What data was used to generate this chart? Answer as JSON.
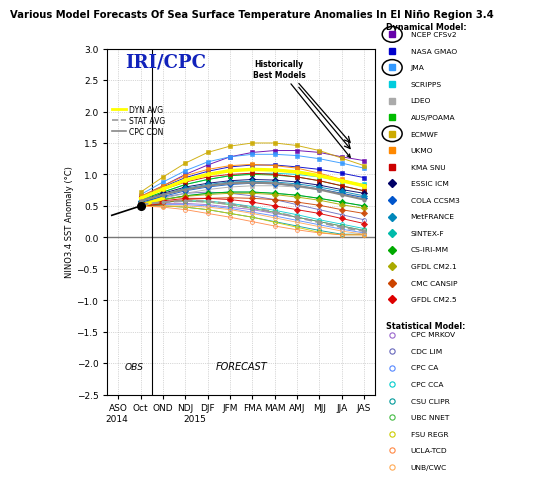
{
  "title": "Various Model Forecasts Of Sea Surface Temperature Anomalies In El Niño Region 3.4",
  "ylabel": "NINO3.4 SST Anomaly (°C)",
  "ylim": [
    -2.5,
    3.0
  ],
  "yticks": [
    3.0,
    2.5,
    2.0,
    1.5,
    1.0,
    0.5,
    0.0,
    -0.5,
    -1.0,
    -1.5,
    -2.0,
    -2.5
  ],
  "xtick_labels": [
    "ASO",
    "Oct",
    "OND",
    "NDJ",
    "DJF",
    "JFM",
    "FMA",
    "MAM",
    "AMJ",
    "MJJ",
    "JJA",
    "JAS"
  ],
  "background_color": "#ffffff",
  "obs_prior": 0.35,
  "obs_value": 0.5,
  "dynamical_models": {
    "NCEP CFSv2": {
      "color": "#6600aa",
      "marker": "s",
      "values": [
        0.5,
        0.65,
        0.82,
        1.0,
        1.15,
        1.28,
        1.35,
        1.38,
        1.38,
        1.35,
        1.28,
        1.22
      ]
    },
    "NASA GMAO": {
      "color": "#0000cc",
      "marker": "s",
      "values": [
        0.5,
        0.62,
        0.8,
        0.95,
        1.05,
        1.12,
        1.15,
        1.15,
        1.12,
        1.08,
        1.02,
        0.95
      ]
    },
    "JMA": {
      "color": "#3399ff",
      "marker": "s",
      "values": [
        0.5,
        0.68,
        0.88,
        1.06,
        1.2,
        1.28,
        1.32,
        1.32,
        1.3,
        1.25,
        1.18,
        1.1
      ],
      "circled": true
    },
    "SCRIPPS": {
      "color": "#00ccdd",
      "marker": "s",
      "values": [
        0.5,
        0.6,
        0.72,
        0.84,
        0.92,
        0.98,
        1.01,
        1.02,
        1.0,
        0.96,
        0.9,
        0.84
      ]
    },
    "LDEO": {
      "color": "#aaaaaa",
      "marker": "s",
      "values": [
        0.5,
        0.55,
        0.62,
        0.7,
        0.76,
        0.8,
        0.82,
        0.82,
        0.8,
        0.76,
        0.7,
        0.64
      ]
    },
    "AUS/POAMA": {
      "color": "#00bb00",
      "marker": "s",
      "values": [
        0.5,
        0.6,
        0.72,
        0.84,
        0.92,
        0.98,
        1.0,
        0.99,
        0.96,
        0.9,
        0.82,
        0.74
      ]
    },
    "ECMWF": {
      "color": "#ccaa00",
      "marker": "s",
      "values": [
        0.5,
        0.72,
        0.96,
        1.18,
        1.35,
        1.45,
        1.5,
        1.5,
        1.46,
        1.38,
        1.26,
        1.14
      ],
      "circled": true
    },
    "UKMO": {
      "color": "#ff8800",
      "marker": "s",
      "values": [
        0.5,
        0.65,
        0.82,
        0.98,
        1.08,
        1.14,
        1.16,
        1.14,
        1.1,
        1.02,
        0.92,
        0.82
      ]
    },
    "KMA SNU": {
      "color": "#cc0000",
      "marker": "s",
      "values": [
        0.5,
        0.62,
        0.76,
        0.88,
        0.96,
        1.0,
        1.02,
        1.0,
        0.96,
        0.9,
        0.82,
        0.74
      ]
    },
    "ESSIC ICM": {
      "color": "#000066",
      "marker": "D",
      "values": [
        0.5,
        0.58,
        0.7,
        0.8,
        0.86,
        0.9,
        0.92,
        0.91,
        0.88,
        0.83,
        0.76,
        0.7
      ]
    },
    "COLA CCSM3": {
      "color": "#0055cc",
      "marker": "D",
      "values": [
        0.5,
        0.56,
        0.65,
        0.74,
        0.8,
        0.84,
        0.86,
        0.85,
        0.82,
        0.77,
        0.7,
        0.63
      ]
    },
    "MetFRANCE": {
      "color": "#0088bb",
      "marker": "D",
      "values": [
        0.5,
        0.58,
        0.68,
        0.78,
        0.84,
        0.88,
        0.89,
        0.88,
        0.85,
        0.8,
        0.73,
        0.66
      ]
    },
    "SINTEX-F": {
      "color": "#00bbaa",
      "marker": "D",
      "values": [
        0.5,
        0.54,
        0.6,
        0.66,
        0.7,
        0.72,
        0.72,
        0.7,
        0.67,
        0.62,
        0.56,
        0.5
      ]
    },
    "CS-IRI-MM": {
      "color": "#00aa00",
      "marker": "D",
      "values": [
        0.5,
        0.54,
        0.6,
        0.66,
        0.7,
        0.72,
        0.72,
        0.7,
        0.67,
        0.62,
        0.56,
        0.5
      ]
    },
    "GFDL CM2.1": {
      "color": "#aaaa00",
      "marker": "D",
      "values": [
        0.5,
        0.54,
        0.6,
        0.65,
        0.68,
        0.7,
        0.7,
        0.68,
        0.64,
        0.59,
        0.52,
        0.46
      ]
    },
    "CMC CANSIP": {
      "color": "#cc4400",
      "marker": "D",
      "values": [
        0.5,
        0.52,
        0.56,
        0.6,
        0.62,
        0.63,
        0.62,
        0.6,
        0.56,
        0.51,
        0.44,
        0.38
      ]
    },
    "GFDL CM2.5": {
      "color": "#dd0000",
      "marker": "D",
      "values": [
        0.5,
        0.54,
        0.58,
        0.62,
        0.62,
        0.6,
        0.56,
        0.5,
        0.44,
        0.38,
        0.3,
        0.22
      ]
    }
  },
  "statistical_models": {
    "CPC MRKOV": {
      "color": "#9966cc",
      "values": [
        0.5,
        0.52,
        0.54,
        0.54,
        0.52,
        0.48,
        0.44,
        0.38,
        0.32,
        0.25,
        0.18,
        0.11
      ]
    },
    "CDC LIM": {
      "color": "#6666bb",
      "values": [
        0.5,
        0.56,
        0.64,
        0.7,
        0.72,
        0.7,
        0.66,
        0.6,
        0.52,
        0.44,
        0.36,
        0.28
      ]
    },
    "CPC CA": {
      "color": "#5588ff",
      "values": [
        0.5,
        0.5,
        0.52,
        0.52,
        0.5,
        0.46,
        0.4,
        0.34,
        0.27,
        0.2,
        0.13,
        0.07
      ]
    },
    "CPC CCA": {
      "color": "#00cccc",
      "values": [
        0.5,
        0.52,
        0.56,
        0.58,
        0.58,
        0.54,
        0.49,
        0.43,
        0.36,
        0.28,
        0.21,
        0.14
      ]
    },
    "CSU CLIPR": {
      "color": "#009999",
      "values": [
        0.5,
        0.5,
        0.5,
        0.48,
        0.44,
        0.38,
        0.32,
        0.25,
        0.18,
        0.11,
        0.05,
        0.05
      ]
    },
    "UBC NNET": {
      "color": "#44bb44",
      "values": [
        0.5,
        0.52,
        0.56,
        0.58,
        0.56,
        0.52,
        0.46,
        0.4,
        0.32,
        0.25,
        0.18,
        0.11
      ]
    },
    "FSU REGR": {
      "color": "#cccc00",
      "values": [
        0.5,
        0.5,
        0.5,
        0.48,
        0.44,
        0.38,
        0.32,
        0.24,
        0.16,
        0.08,
        0.04,
        0.04
      ]
    },
    "UCLA-TCD": {
      "color": "#ff8844",
      "values": [
        0.5,
        0.5,
        0.48,
        0.44,
        0.38,
        0.32,
        0.25,
        0.18,
        0.12,
        0.07,
        0.04,
        0.04
      ]
    },
    "UNB/CWC": {
      "color": "#ffaa55",
      "values": [
        0.5,
        0.5,
        0.5,
        0.5,
        0.48,
        0.44,
        0.38,
        0.31,
        0.24,
        0.17,
        0.1,
        0.05
      ]
    }
  },
  "dyn_avg": {
    "color": "#ffff00",
    "linewidth": 2.5,
    "values": [
      0.5,
      0.62,
      0.77,
      0.91,
      1.0,
      1.06,
      1.08,
      1.07,
      1.04,
      0.98,
      0.9,
      0.82
    ]
  },
  "stat_avg": {
    "color": "#999999",
    "linewidth": 1.5,
    "linestyle": "--",
    "values": [
      0.5,
      0.52,
      0.56,
      0.58,
      0.57,
      0.53,
      0.47,
      0.4,
      0.32,
      0.24,
      0.16,
      0.1
    ]
  },
  "cpc_con": {
    "color": "#888888",
    "linewidth": 1.5,
    "linestyle": "-",
    "values": [
      0.5,
      0.58,
      0.68,
      0.76,
      0.82,
      0.86,
      0.87,
      0.86,
      0.82,
      0.76,
      0.68,
      0.6
    ]
  }
}
